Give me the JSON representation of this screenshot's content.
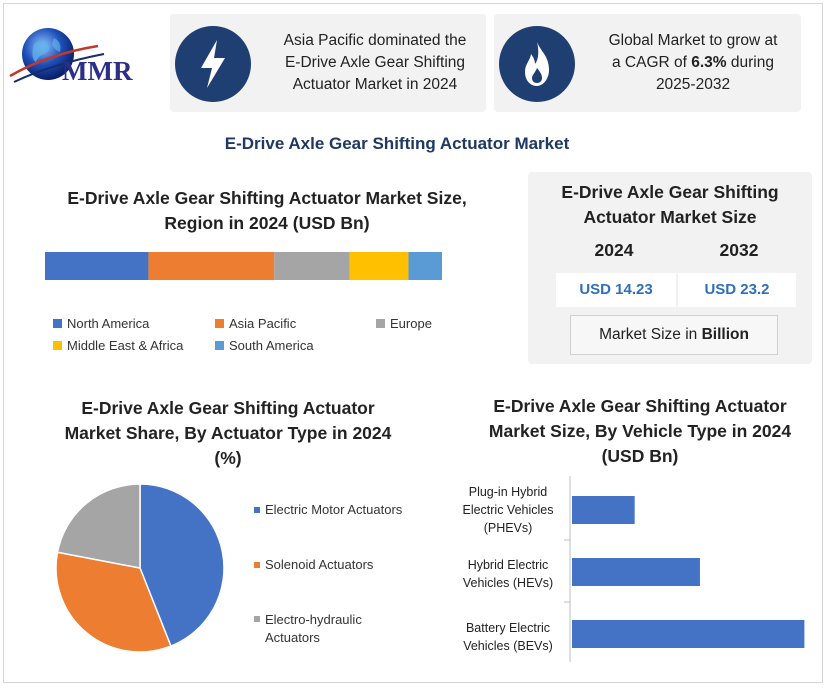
{
  "logo": {
    "text": "MMR",
    "name": "mmr-globe-logo"
  },
  "highlights": [
    {
      "icon": "lightning-bolt-icon",
      "text_lines": [
        "Asia Pacific dominated the",
        "E-Drive Axle Gear Shifting",
        "Actuator Market in 2024"
      ]
    },
    {
      "icon": "flame-icon",
      "line1": "Global Market to grow at",
      "line2_pre": "a CAGR of ",
      "line2_bold": "6.3%",
      "line2_post": " during",
      "line3": "2025-2032"
    }
  ],
  "main_title": "E-Drive Axle Gear Shifting Actuator Market",
  "market_size": {
    "title_lines": [
      "E-Drive Axle Gear Shifting",
      "Actuator Market Size"
    ],
    "years": [
      "2024",
      "2032"
    ],
    "values": [
      "USD 14.23",
      "USD 23.2"
    ],
    "note_pre": "Market Size in ",
    "note_bold": "Billion"
  },
  "colors": {
    "north_america": "#4472c4",
    "asia_pacific": "#ed7d31",
    "europe": "#a5a5a5",
    "middle_east_africa": "#ffc000",
    "south_america": "#5b9bd5",
    "accent": "#1f3864",
    "value_blue": "#2f6eba"
  },
  "chart_data": [
    {
      "type": "bar",
      "orientation": "stacked-horizontal",
      "title_lines": [
        "E-Drive Axle Gear Shifting Actuator Market Size,",
        "Region in 2024 (USD Bn)"
      ],
      "series": [
        {
          "name": "North America",
          "value": 3.7
        },
        {
          "name": "Asia Pacific",
          "value": 4.5
        },
        {
          "name": "Europe",
          "value": 2.7
        },
        {
          "name": "Middle East & Africa",
          "value": 2.1
        },
        {
          "name": "South America",
          "value": 1.2
        }
      ],
      "legend": "bottom"
    },
    {
      "type": "pie",
      "title_lines": [
        "E-Drive Axle Gear Shifting Actuator",
        "Market Share, By Actuator Type in 2024",
        "(%)"
      ],
      "slices": [
        {
          "name": "Electric Motor Actuators",
          "value": 44
        },
        {
          "name": "Solenoid Actuators",
          "value": 34
        },
        {
          "name": "Electro-hydraulic Actuators",
          "value": 22
        }
      ],
      "legend_labels": [
        [
          "Electric Motor Actuators"
        ],
        [
          "Solenoid Actuators"
        ],
        [
          "Electro-hydraulic",
          "Actuators"
        ]
      ],
      "legend": "right"
    },
    {
      "type": "bar",
      "orientation": "horizontal",
      "title_lines": [
        "E-Drive Axle Gear Shifting Actuator",
        "Market Size, By  Vehicle Type in 2024",
        "(USD Bn)"
      ],
      "categories": [
        [
          "Plug-in Hybrid",
          "Electric Vehicles",
          "(PHEVs)"
        ],
        [
          "Hybrid Electric",
          "Vehicles (HEVs)"
        ],
        [
          "Battery Electric",
          "Vehicles (BEVs)"
        ]
      ],
      "values": [
        2.4,
        4.9,
        8.9
      ],
      "xlim": [
        0,
        9
      ]
    }
  ]
}
